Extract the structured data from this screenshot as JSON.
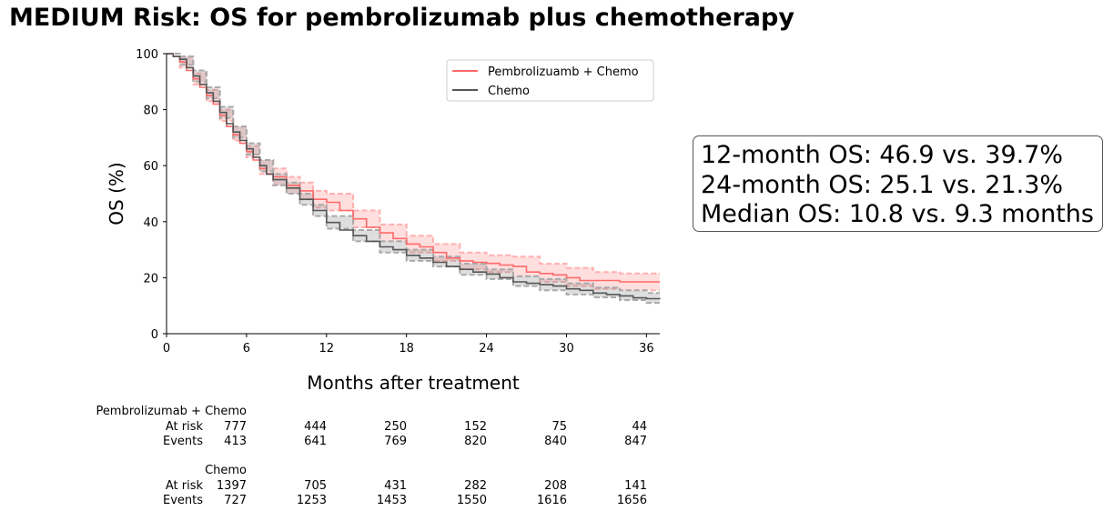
{
  "chart_data": {
    "type": "line",
    "title": "MEDIUM Risk: OS for pembrolizumab plus chemotherapy",
    "xlabel": "Months after treatment",
    "ylabel": "OS (%)",
    "xlim": [
      0,
      37
    ],
    "ylim": [
      0,
      100
    ],
    "xticks": [
      0,
      6,
      12,
      18,
      24,
      30,
      36
    ],
    "yticks": [
      0,
      20,
      40,
      60,
      80,
      100
    ],
    "grid": false,
    "legend_position": "top-right",
    "series": [
      {
        "name": "Pembrolizuamb + Chemo",
        "color": "#ff6a6a",
        "points": [
          [
            0,
            100
          ],
          [
            0.5,
            99
          ],
          [
            1,
            97
          ],
          [
            1.5,
            94
          ],
          [
            2,
            91
          ],
          [
            2.5,
            88
          ],
          [
            3,
            85
          ],
          [
            3.5,
            82
          ],
          [
            4,
            78
          ],
          [
            4.5,
            74
          ],
          [
            5,
            71
          ],
          [
            5.5,
            68
          ],
          [
            6,
            65
          ],
          [
            6.5,
            62
          ],
          [
            7,
            59
          ],
          [
            7.5,
            57
          ],
          [
            8,
            56
          ],
          [
            9,
            53
          ],
          [
            10,
            51
          ],
          [
            11,
            48
          ],
          [
            12,
            46.9
          ],
          [
            13,
            44
          ],
          [
            14,
            41
          ],
          [
            15,
            38
          ],
          [
            16,
            36
          ],
          [
            17,
            34
          ],
          [
            18,
            32
          ],
          [
            19,
            31
          ],
          [
            20,
            29
          ],
          [
            21,
            27
          ],
          [
            22,
            26
          ],
          [
            23,
            25.5
          ],
          [
            24,
            25.1
          ],
          [
            25,
            24.5
          ],
          [
            26,
            24
          ],
          [
            27,
            22
          ],
          [
            28,
            21.5
          ],
          [
            29,
            21
          ],
          [
            30,
            20
          ],
          [
            31,
            19
          ],
          [
            32,
            19
          ],
          [
            33,
            19
          ],
          [
            34,
            18.5
          ],
          [
            35,
            18.5
          ],
          [
            37,
            18.5
          ]
        ],
        "ci_lower": [
          [
            0,
            100
          ],
          [
            1,
            95
          ],
          [
            2,
            89
          ],
          [
            3,
            83
          ],
          [
            4,
            76
          ],
          [
            5,
            69
          ],
          [
            6,
            63
          ],
          [
            7,
            57
          ],
          [
            8,
            53
          ],
          [
            9,
            50
          ],
          [
            10,
            48
          ],
          [
            11,
            45
          ],
          [
            12,
            44
          ],
          [
            14,
            38
          ],
          [
            16,
            33
          ],
          [
            18,
            29
          ],
          [
            20,
            26
          ],
          [
            22,
            23
          ],
          [
            24,
            22
          ],
          [
            26,
            20.5
          ],
          [
            28,
            18.5
          ],
          [
            30,
            17
          ],
          [
            32,
            16
          ],
          [
            34,
            15.5
          ],
          [
            37,
            15.5
          ]
        ],
        "ci_upper": [
          [
            0,
            100
          ],
          [
            1,
            99
          ],
          [
            2,
            93
          ],
          [
            3,
            87
          ],
          [
            4,
            80
          ],
          [
            5,
            74
          ],
          [
            6,
            67
          ],
          [
            7,
            62
          ],
          [
            8,
            59
          ],
          [
            9,
            56
          ],
          [
            10,
            54
          ],
          [
            11,
            51
          ],
          [
            12,
            50
          ],
          [
            14,
            44
          ],
          [
            16,
            39
          ],
          [
            18,
            35
          ],
          [
            20,
            32
          ],
          [
            22,
            29
          ],
          [
            24,
            28
          ],
          [
            26,
            27.5
          ],
          [
            28,
            25
          ],
          [
            30,
            23.5
          ],
          [
            32,
            22
          ],
          [
            34,
            21.5
          ],
          [
            37,
            21.5
          ]
        ]
      },
      {
        "name": "Chemo",
        "color": "#555555",
        "points": [
          [
            0,
            100
          ],
          [
            0.5,
            99
          ],
          [
            1,
            98
          ],
          [
            1.5,
            95
          ],
          [
            2,
            92
          ],
          [
            2.5,
            89
          ],
          [
            3,
            86
          ],
          [
            3.5,
            83
          ],
          [
            4,
            79
          ],
          [
            4.5,
            75
          ],
          [
            5,
            72
          ],
          [
            5.5,
            69
          ],
          [
            6,
            66
          ],
          [
            6.5,
            63
          ],
          [
            7,
            60
          ],
          [
            7.5,
            57
          ],
          [
            8,
            55
          ],
          [
            9,
            52
          ],
          [
            10,
            48
          ],
          [
            11,
            44
          ],
          [
            12,
            39.7
          ],
          [
            13,
            37
          ],
          [
            14,
            35
          ],
          [
            15,
            33
          ],
          [
            16,
            31
          ],
          [
            17,
            30
          ],
          [
            18,
            28
          ],
          [
            19,
            27
          ],
          [
            20,
            25.5
          ],
          [
            21,
            24
          ],
          [
            22,
            23
          ],
          [
            23,
            22
          ],
          [
            24,
            21.3
          ],
          [
            25,
            20
          ],
          [
            26,
            18.5
          ],
          [
            27,
            18
          ],
          [
            28,
            17.5
          ],
          [
            29,
            17
          ],
          [
            30,
            16
          ],
          [
            31,
            15.5
          ],
          [
            32,
            14.5
          ],
          [
            33,
            14
          ],
          [
            34,
            13.5
          ],
          [
            35,
            12.8
          ],
          [
            36,
            12.5
          ],
          [
            37,
            12.3
          ]
        ],
        "ci_lower": [
          [
            0,
            100
          ],
          [
            1,
            96
          ],
          [
            2,
            90
          ],
          [
            3,
            84
          ],
          [
            4,
            77
          ],
          [
            5,
            70
          ],
          [
            6,
            64
          ],
          [
            7,
            58
          ],
          [
            8,
            53
          ],
          [
            9,
            50
          ],
          [
            10,
            46
          ],
          [
            11,
            42
          ],
          [
            12,
            37.5
          ],
          [
            14,
            33
          ],
          [
            16,
            29
          ],
          [
            18,
            26
          ],
          [
            20,
            24
          ],
          [
            22,
            21
          ],
          [
            24,
            19.5
          ],
          [
            26,
            17
          ],
          [
            28,
            15.5
          ],
          [
            30,
            14
          ],
          [
            32,
            13
          ],
          [
            34,
            12
          ],
          [
            36,
            11
          ],
          [
            37,
            11
          ]
        ],
        "ci_upper": [
          [
            0,
            100
          ],
          [
            1,
            99
          ],
          [
            2,
            94
          ],
          [
            3,
            88
          ],
          [
            4,
            81
          ],
          [
            5,
            74
          ],
          [
            6,
            68
          ],
          [
            7,
            62
          ],
          [
            8,
            57
          ],
          [
            9,
            54
          ],
          [
            10,
            50
          ],
          [
            11,
            46
          ],
          [
            12,
            42
          ],
          [
            14,
            37
          ],
          [
            16,
            33
          ],
          [
            18,
            30
          ],
          [
            20,
            27.5
          ],
          [
            22,
            25
          ],
          [
            24,
            23
          ],
          [
            26,
            20.5
          ],
          [
            28,
            19.5
          ],
          [
            30,
            18
          ],
          [
            32,
            16.5
          ],
          [
            34,
            15.5
          ],
          [
            36,
            14.5
          ],
          [
            37,
            14.5
          ]
        ]
      }
    ],
    "annotation": [
      "12-month OS: 46.9 vs. 39.7%",
      "24-month OS: 25.1 vs. 21.3%",
      "Median OS: 10.8 vs. 9.3 months"
    ],
    "risk_table": {
      "times": [
        0,
        6,
        12,
        18,
        24,
        30
      ],
      "groups": [
        {
          "name": "Pembrolizumab + Chemo",
          "at_risk": [
            777,
            444,
            250,
            152,
            75,
            44
          ],
          "events": [
            413,
            641,
            769,
            820,
            840,
            847
          ]
        },
        {
          "name": "Chemo",
          "at_risk": [
            1397,
            705,
            431,
            282,
            208,
            141
          ],
          "events": [
            727,
            1253,
            1453,
            1550,
            1616,
            1656
          ]
        }
      ],
      "at_risk_label": "At risk",
      "events_label": "Events"
    }
  }
}
